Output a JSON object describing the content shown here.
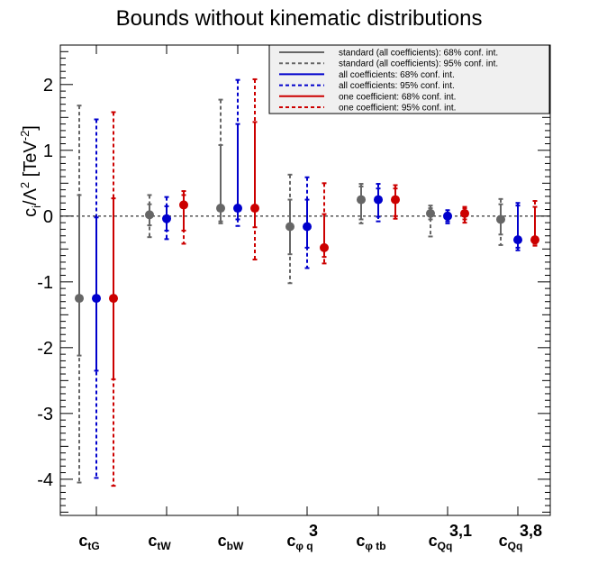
{
  "chart_data": {
    "type": "errorbar",
    "title": "Bounds without kinematic distributions",
    "ylabel": {
      "main": "c",
      "sub": "i",
      "sep": "/Λ",
      "sup1": "2",
      "unit": " [TeV",
      "sup2": "-2",
      "end": "]"
    },
    "ylim": [
      -4.55,
      2.6
    ],
    "yticks": [
      -4,
      -3,
      -2,
      -1,
      0,
      1,
      2
    ],
    "ytick_labels": [
      "-4",
      "-3",
      "-2",
      "-1",
      "0",
      "1",
      "2"
    ],
    "reference_line": 0,
    "categories": [
      {
        "base": "c",
        "sub": "tG",
        "sup": ""
      },
      {
        "base": "c",
        "sub": "tW",
        "sup": ""
      },
      {
        "base": "c",
        "sub": "bW",
        "sup": ""
      },
      {
        "base": "c",
        "sub": "φ q",
        "sup": "3"
      },
      {
        "base": "c",
        "sub": "φ tb",
        "sup": ""
      },
      {
        "base": "c",
        "sub": "Qq",
        "sup": "3,1"
      },
      {
        "base": "c",
        "sub": "Qq",
        "sup": "3,8"
      }
    ],
    "series": [
      {
        "name": "standard (all coefficients)",
        "color": "#666666",
        "central": [
          -1.25,
          0.02,
          0.12,
          -0.16,
          0.25,
          0.04,
          -0.05
        ],
        "ci68": [
          [
            -2.12,
            0.32
          ],
          [
            -0.14,
            0.18
          ],
          [
            -0.08,
            1.08
          ],
          [
            -0.58,
            0.25
          ],
          [
            -0.05,
            0.45
          ],
          [
            -0.05,
            0.12
          ],
          [
            -0.28,
            0.18
          ]
        ],
        "ci95": [
          [
            -4.05,
            1.68
          ],
          [
            -0.32,
            0.32
          ],
          [
            -0.11,
            1.77
          ],
          [
            -1.02,
            0.63
          ],
          [
            -0.11,
            0.49
          ],
          [
            -0.31,
            0.16
          ],
          [
            -0.44,
            0.26
          ]
        ]
      },
      {
        "name": "all coefficients",
        "color": "#0000cc",
        "central": [
          -1.25,
          -0.04,
          0.12,
          -0.16,
          0.25,
          0.0,
          -0.36
        ],
        "ci68": [
          [
            -2.35,
            -0.02
          ],
          [
            -0.22,
            0.15
          ],
          [
            -0.05,
            1.4
          ],
          [
            -0.48,
            0.25
          ],
          [
            -0.01,
            0.42
          ],
          [
            -0.08,
            0.05
          ],
          [
            -0.48,
            0.16
          ]
        ],
        "ci95": [
          [
            -3.98,
            1.47
          ],
          [
            -0.35,
            0.29
          ],
          [
            -0.15,
            2.07
          ],
          [
            -0.79,
            0.59
          ],
          [
            -0.08,
            0.49
          ],
          [
            -0.11,
            0.09
          ],
          [
            -0.52,
            0.2
          ]
        ]
      },
      {
        "name": "one coefficient",
        "color": "#cc0000",
        "central": [
          -1.25,
          0.17,
          0.12,
          -0.48,
          0.25,
          0.04,
          -0.36
        ],
        "ci68": [
          [
            -2.48,
            0.27
          ],
          [
            -0.22,
            0.32
          ],
          [
            -0.17,
            1.43
          ],
          [
            -0.62,
            0.03
          ],
          [
            0.0,
            0.42
          ],
          [
            -0.05,
            0.12
          ],
          [
            -0.42,
            0.14
          ]
        ],
        "ci95": [
          [
            -4.1,
            1.58
          ],
          [
            -0.42,
            0.38
          ],
          [
            -0.66,
            2.08
          ],
          [
            -0.72,
            0.5
          ],
          [
            -0.04,
            0.47
          ],
          [
            -0.1,
            0.14
          ],
          [
            -0.45,
            0.23
          ]
        ]
      }
    ],
    "legend": {
      "position": "top-right",
      "entries": [
        {
          "label": "standard (all coefficients): 68% conf. int.",
          "color": "#666666",
          "style": "solid"
        },
        {
          "label": "standard (all coefficients): 95% conf. int.",
          "color": "#666666",
          "style": "dashed"
        },
        {
          "label": "all coefficients: 68% conf. int.",
          "color": "#0000cc",
          "style": "solid"
        },
        {
          "label": "all coefficients: 95% conf. int.",
          "color": "#0000cc",
          "style": "dashed"
        },
        {
          "label": "one coefficient: 68% conf. int.",
          "color": "#cc0000",
          "style": "solid"
        },
        {
          "label": "one coefficient: 95% conf. int.",
          "color": "#cc0000",
          "style": "dashed"
        }
      ]
    }
  }
}
